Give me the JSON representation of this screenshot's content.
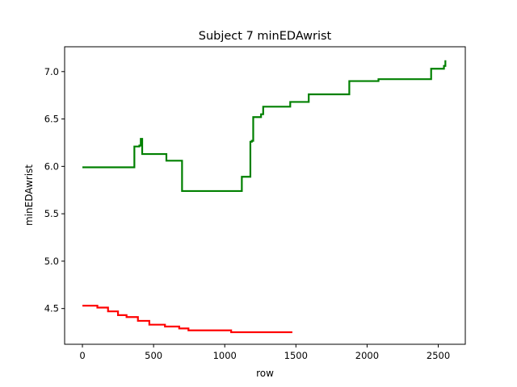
{
  "chart_data": {
    "type": "line",
    "title": "Subject 7 minEDAwrist",
    "xlabel": "row",
    "ylabel": "minEDAwrist",
    "xlim": [
      -125,
      2690
    ],
    "ylim": [
      4.123,
      7.262
    ],
    "xticks": [
      0,
      500,
      1000,
      1500,
      2000,
      2500
    ],
    "xtick_labels": [
      "0",
      "500",
      "1000",
      "1500",
      "2000",
      "2500"
    ],
    "yticks": [
      4.5,
      5.0,
      5.5,
      6.0,
      6.5,
      7.0
    ],
    "ytick_labels": [
      "4.5",
      "5.0",
      "5.5",
      "6.0",
      "6.5",
      "7.0"
    ],
    "grid": false,
    "series": [
      {
        "color": "#008000",
        "x": [
          0,
          365,
          365,
          400,
          400,
          410,
          410,
          420,
          420,
          590,
          590,
          700,
          700,
          1120,
          1120,
          1180,
          1180,
          1190,
          1190,
          1200,
          1200,
          1255,
          1255,
          1270,
          1270,
          1460,
          1460,
          1590,
          1590,
          1875,
          1875,
          2080,
          2080,
          2450,
          2450,
          2540,
          2540,
          2550,
          2550
        ],
        "y": [
          5.99,
          5.99,
          6.21,
          6.21,
          6.22,
          6.22,
          6.29,
          6.29,
          6.13,
          6.13,
          6.06,
          6.06,
          5.74,
          5.74,
          5.89,
          5.89,
          6.26,
          6.26,
          6.27,
          6.27,
          6.52,
          6.52,
          6.55,
          6.55,
          6.63,
          6.63,
          6.68,
          6.68,
          6.76,
          6.76,
          6.9,
          6.9,
          6.92,
          6.92,
          7.03,
          7.03,
          7.06,
          7.06,
          7.12
        ]
      },
      {
        "color": "#ff0000",
        "x": [
          0,
          105,
          105,
          180,
          180,
          250,
          250,
          310,
          310,
          390,
          390,
          470,
          470,
          580,
          580,
          680,
          680,
          745,
          745,
          1045,
          1045,
          1475
        ],
        "y": [
          4.53,
          4.53,
          4.51,
          4.51,
          4.47,
          4.47,
          4.43,
          4.43,
          4.41,
          4.41,
          4.37,
          4.37,
          4.33,
          4.33,
          4.31,
          4.31,
          4.29,
          4.29,
          4.27,
          4.27,
          4.25,
          4.25
        ]
      }
    ]
  }
}
